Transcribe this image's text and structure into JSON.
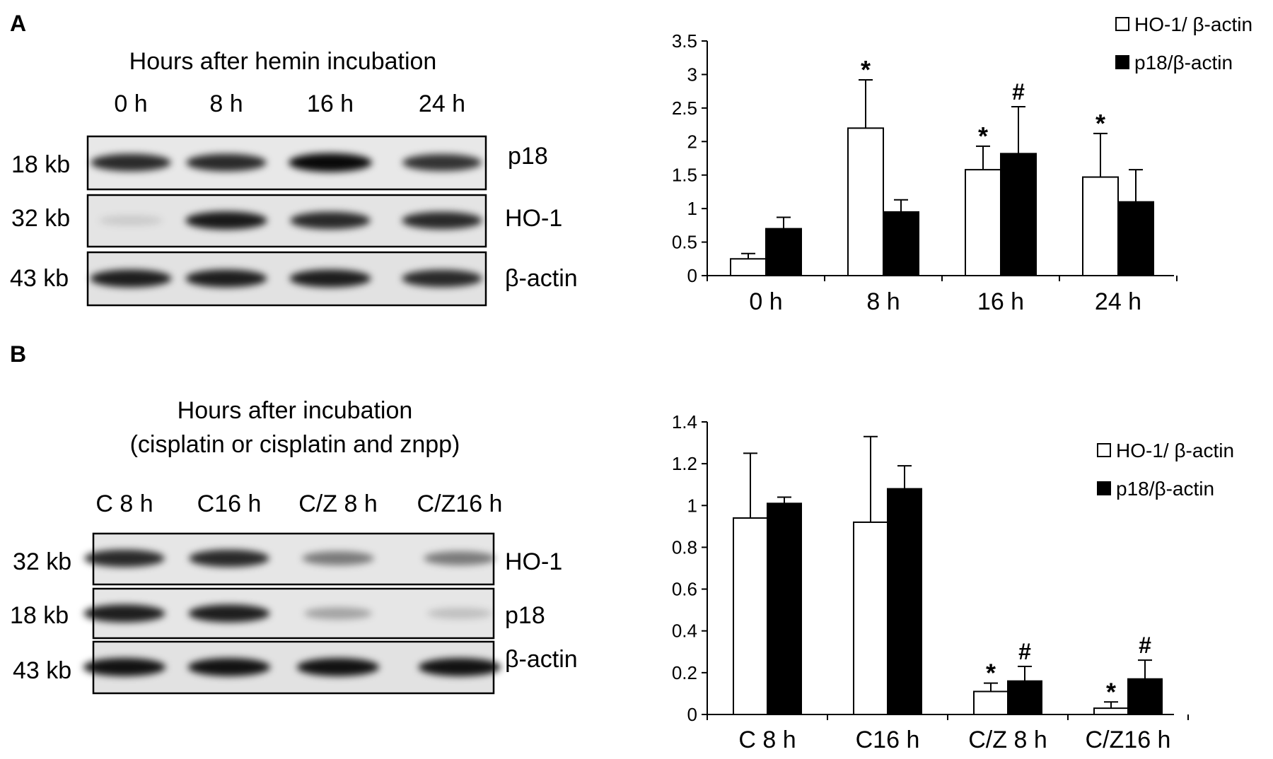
{
  "panels": [
    {
      "label": "A",
      "blot": {
        "title_lines": [
          "Hours after hemin incubation"
        ],
        "lanes": [
          "0 h",
          "8 h",
          "16 h",
          "24 h"
        ],
        "rows": [
          {
            "size": "18 kb",
            "protein": "p18",
            "intensity": [
              0.85,
              0.85,
              1.0,
              0.8
            ]
          },
          {
            "size": "32 kb",
            "protein": "HO-1",
            "intensity": [
              0.05,
              0.92,
              0.85,
              0.85
            ]
          },
          {
            "size": "43 kb",
            "protein": "β-actin",
            "intensity": [
              0.9,
              0.9,
              0.9,
              0.85
            ]
          }
        ]
      }
    },
    {
      "label": "B",
      "blot": {
        "title_lines": [
          "Hours after incubation",
          "(cisplatin or cisplatin and znpp)"
        ],
        "lanes": [
          "C 8 h",
          "C16 h",
          "C/Z 8 h",
          "C/Z16 h"
        ],
        "rows": [
          {
            "size": "32 kb",
            "protein": "HO-1",
            "intensity": [
              0.85,
              0.85,
              0.45,
              0.45
            ]
          },
          {
            "size": "18 kb",
            "protein": "p18",
            "intensity": [
              0.9,
              0.9,
              0.25,
              0.12
            ]
          },
          {
            "size": "43 kb",
            "protein": "β-actin",
            "intensity": [
              0.95,
              0.95,
              0.95,
              0.95
            ]
          }
        ]
      }
    }
  ],
  "chart_data": [
    {
      "type": "bar",
      "categories": [
        "0 h",
        "8 h",
        "16 h",
        "24 h"
      ],
      "ylim": [
        0,
        3.5
      ],
      "yticks": [
        0,
        0.5,
        1,
        1.5,
        2,
        2.5,
        3,
        3.5
      ],
      "ytick_labels": [
        "0",
        "0.5",
        "1",
        "1.5",
        "2",
        "2.5",
        "3",
        "3.5"
      ],
      "legend_position": "top-right",
      "grid": false,
      "series": [
        {
          "name": "HO-1/ β-actin",
          "fill": "#ffffff",
          "values": [
            0.25,
            2.2,
            1.58,
            1.47
          ],
          "errors": [
            0.08,
            0.72,
            0.35,
            0.65
          ],
          "annotations": [
            "",
            "*",
            "*",
            "*"
          ]
        },
        {
          "name": "p18/β-actin",
          "fill": "#000000",
          "values": [
            0.7,
            0.95,
            1.82,
            1.1
          ],
          "errors": [
            0.17,
            0.18,
            0.7,
            0.48
          ],
          "annotations": [
            "",
            "",
            "#",
            ""
          ]
        }
      ]
    },
    {
      "type": "bar",
      "categories": [
        "C 8 h",
        "C16 h",
        "C/Z 8 h",
        "C/Z16 h"
      ],
      "ylim": [
        0,
        1.4
      ],
      "yticks": [
        0,
        0.2,
        0.4,
        0.6,
        0.8,
        1,
        1.2,
        1.4
      ],
      "ytick_labels": [
        "0",
        "0.2",
        "0.4",
        "0.6",
        "0.8",
        "1",
        "1.2",
        "1.4"
      ],
      "legend_position": "top-right",
      "grid": false,
      "series": [
        {
          "name": "HO-1/ β-actin",
          "fill": "#ffffff",
          "values": [
            0.94,
            0.92,
            0.11,
            0.03
          ],
          "errors": [
            0.31,
            0.41,
            0.04,
            0.03
          ],
          "annotations": [
            "",
            "",
            "*",
            "*"
          ]
        },
        {
          "name": "p18/β-actin",
          "fill": "#000000",
          "values": [
            1.01,
            1.08,
            0.16,
            0.17
          ],
          "errors": [
            0.03,
            0.11,
            0.07,
            0.09
          ],
          "annotations": [
            "",
            "",
            "#",
            "#"
          ]
        }
      ]
    }
  ]
}
